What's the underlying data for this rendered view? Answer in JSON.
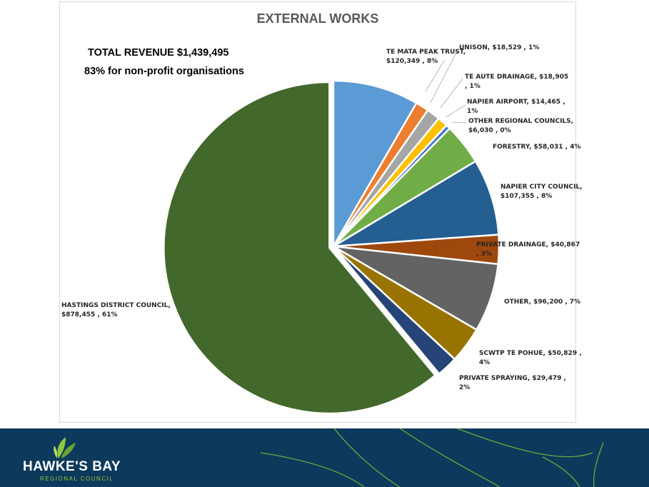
{
  "summary": {
    "total_revenue": "TOTAL REVENUE $1,439,495",
    "nonprofit_note": "83% for non-profit organisations"
  },
  "footer": {
    "logo_name": "HAWKE'S BAY",
    "logo_subtitle": "REGIONAL COUNCIL",
    "background_color": "#0d3a5c",
    "accent_color": "#8dc63f"
  },
  "chart_data": {
    "type": "pie",
    "title": "EXTERNAL WORKS",
    "slices": [
      {
        "label_lines": [
          "TE MATA PEAK TRUST,",
          "$120,349 , 8%"
        ],
        "value": 120349,
        "percent": "8%",
        "color": "#5b9bd5",
        "exploded": false
      },
      {
        "label_lines": [
          "UNISON,  $18,529 , 1%"
        ],
        "value": 18529,
        "percent": "1%",
        "color": "#ed7d31",
        "exploded": false
      },
      {
        "label_lines": [
          "TE AUTE DRAINAGE,  $18,905",
          ", 1%"
        ],
        "value": 18905,
        "percent": "1%",
        "color": "#a5a5a5",
        "exploded": false
      },
      {
        "label_lines": [
          "NAPIER AIRPORT,  $14,465 ,",
          "1%"
        ],
        "value": 14465,
        "percent": "1%",
        "color": "#ffc000",
        "exploded": false
      },
      {
        "label_lines": [
          "OTHER REGIONAL COUNCILS,",
          "$6,030 , 0%"
        ],
        "value": 6030,
        "percent": "0%",
        "color": "#4472c4",
        "exploded": false
      },
      {
        "label_lines": [
          "FORESTRY,  $58,031 , 4%"
        ],
        "value": 58031,
        "percent": "4%",
        "color": "#70ad47",
        "exploded": false
      },
      {
        "label_lines": [
          "NAPIER CITY COUNCIL,",
          "$107,355 , 8%"
        ],
        "value": 107355,
        "percent": "8%",
        "color": "#255e91",
        "exploded": false
      },
      {
        "label_lines": [
          "PRIVATE DRAINAGE,  $40,867",
          ", 3%"
        ],
        "value": 40867,
        "percent": "3%",
        "color": "#9e480e",
        "exploded": false
      },
      {
        "label_lines": [
          "OTHER,  $96,200 , 7%"
        ],
        "value": 96200,
        "percent": "7%",
        "color": "#636363",
        "exploded": false
      },
      {
        "label_lines": [
          "SCWTP TE POHUE,  $50,829 ,",
          "4%"
        ],
        "value": 50829,
        "percent": "4%",
        "color": "#997300",
        "exploded": false
      },
      {
        "label_lines": [
          "PRIVATE SPRAYING,  $29,479 ,",
          "2%"
        ],
        "value": 29479,
        "percent": "2%",
        "color": "#264478",
        "exploded": false
      },
      {
        "label_lines": [
          "HASTINGS DISTRICT COUNCIL,",
          "$878,455 , 61%"
        ],
        "value": 878455,
        "percent": "61%",
        "color": "#43682b",
        "exploded": true
      }
    ]
  }
}
